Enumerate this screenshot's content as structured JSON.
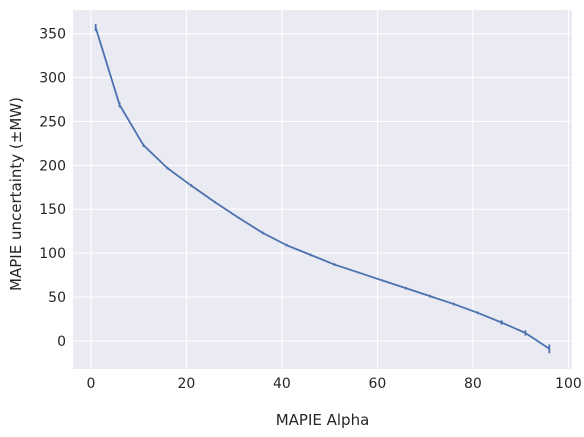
{
  "chart_data": {
    "type": "line",
    "title": "",
    "xlabel": "MAPIE Alpha",
    "ylabel": "MAPIE uncertainty (±MW)",
    "xlim": [
      -3.75,
      100.75
    ],
    "ylim": [
      -32,
      377
    ],
    "xticks": [
      0,
      20,
      40,
      60,
      80,
      100
    ],
    "yticks": [
      0,
      50,
      100,
      150,
      200,
      250,
      300,
      350
    ],
    "grid": true,
    "legend": "none",
    "colors": {
      "background": "#eaeaf2",
      "grid": "#ffffff",
      "line": "#4c72b0"
    },
    "series": [
      {
        "x": [
          1,
          6,
          11,
          16,
          21,
          26,
          31,
          36,
          41,
          46,
          51,
          56,
          61,
          66,
          71,
          76,
          81,
          86,
          91,
          96
        ],
        "y": [
          357,
          269,
          223,
          197,
          177,
          158,
          140,
          123,
          109,
          98,
          87,
          78,
          69,
          60,
          51,
          42,
          32,
          21,
          9,
          -9
        ],
        "err": [
          4,
          3,
          2,
          1.5,
          1.5,
          1,
          1,
          1.5,
          1.5,
          1.5,
          1.5,
          1,
          1,
          1.5,
          1.5,
          1.5,
          1.5,
          2.5,
          3,
          5
        ]
      }
    ]
  }
}
